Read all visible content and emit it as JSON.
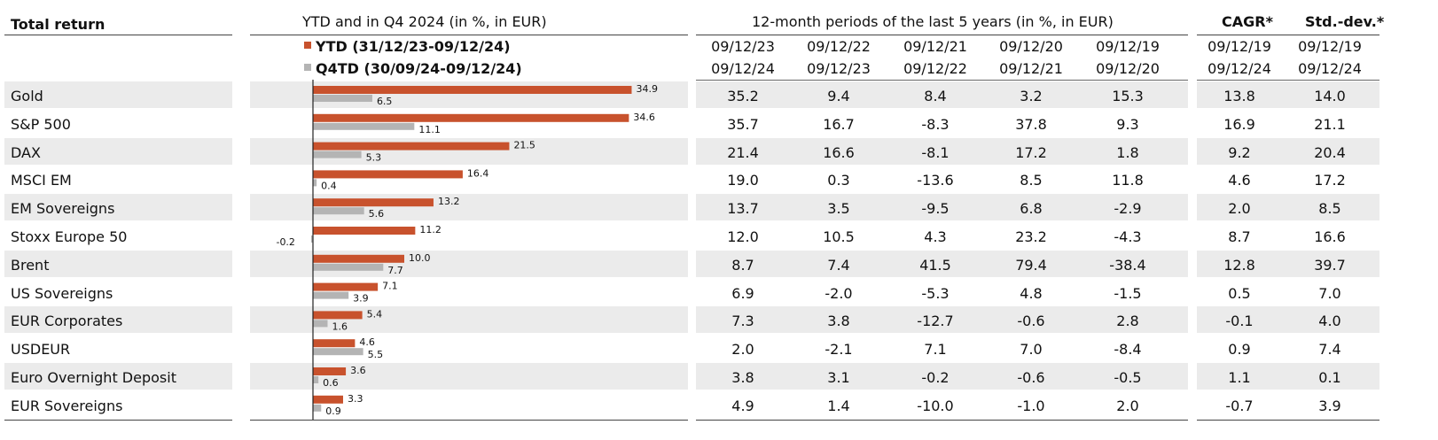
{
  "header": {
    "total_return": "Total return",
    "chart_title": "YTD and in Q4 2024 (in %, in EUR)",
    "periods_title": "12-month periods of the last 5 years (in %, in EUR)",
    "cagr_title": "CAGR*",
    "stddev_title": "Std.-dev.*"
  },
  "legend": {
    "ytd": "YTD (31/12/23-09/12/24)",
    "q4td": "Q4TD (30/09/24-09/12/24)"
  },
  "colors": {
    "ytd": "#c8522d",
    "q4td": "#b4b4b4",
    "band": "#ebebeb"
  },
  "periods": [
    {
      "from": "09/12/23",
      "to": "09/12/24"
    },
    {
      "from": "09/12/22",
      "to": "09/12/23"
    },
    {
      "from": "09/12/21",
      "to": "09/12/22"
    },
    {
      "from": "09/12/20",
      "to": "09/12/21"
    },
    {
      "from": "09/12/19",
      "to": "09/12/20"
    }
  ],
  "cagr_period": {
    "from": "09/12/19",
    "to": "09/12/24"
  },
  "stddev_period": {
    "from": "09/12/19",
    "to": "09/12/24"
  },
  "rows": [
    {
      "name": "Gold",
      "periods": [
        "35.2",
        "9.4",
        "8.4",
        "3.2",
        "15.3"
      ],
      "cagr": "13.8",
      "std": "14.0"
    },
    {
      "name": "S&P 500",
      "periods": [
        "35.7",
        "16.7",
        "-8.3",
        "37.8",
        "9.3"
      ],
      "cagr": "16.9",
      "std": "21.1"
    },
    {
      "name": "DAX",
      "periods": [
        "21.4",
        "16.6",
        "-8.1",
        "17.2",
        "1.8"
      ],
      "cagr": "9.2",
      "std": "20.4"
    },
    {
      "name": "MSCI EM",
      "periods": [
        "19.0",
        "0.3",
        "-13.6",
        "8.5",
        "11.8"
      ],
      "cagr": "4.6",
      "std": "17.2"
    },
    {
      "name": "EM Sovereigns",
      "periods": [
        "13.7",
        "3.5",
        "-9.5",
        "6.8",
        "-2.9"
      ],
      "cagr": "2.0",
      "std": "8.5"
    },
    {
      "name": "Stoxx Europe 50",
      "periods": [
        "12.0",
        "10.5",
        "4.3",
        "23.2",
        "-4.3"
      ],
      "cagr": "8.7",
      "std": "16.6"
    },
    {
      "name": "Brent",
      "periods": [
        "8.7",
        "7.4",
        "41.5",
        "79.4",
        "-38.4"
      ],
      "cagr": "12.8",
      "std": "39.7"
    },
    {
      "name": "US Sovereigns",
      "periods": [
        "6.9",
        "-2.0",
        "-5.3",
        "4.8",
        "-1.5"
      ],
      "cagr": "0.5",
      "std": "7.0"
    },
    {
      "name": "EUR Corporates",
      "periods": [
        "7.3",
        "3.8",
        "-12.7",
        "-0.6",
        "2.8"
      ],
      "cagr": "-0.1",
      "std": "4.0"
    },
    {
      "name": "USDEUR",
      "periods": [
        "2.0",
        "-2.1",
        "7.1",
        "7.0",
        "-8.4"
      ],
      "cagr": "0.9",
      "std": "7.4"
    },
    {
      "name": "Euro Overnight Deposit",
      "periods": [
        "3.8",
        "3.1",
        "-0.2",
        "-0.6",
        "-0.5"
      ],
      "cagr": "1.1",
      "std": "0.1"
    },
    {
      "name": "EUR Sovereigns",
      "periods": [
        "4.9",
        "1.4",
        "-10.0",
        "-1.0",
        "2.0"
      ],
      "cagr": "-0.7",
      "std": "3.9"
    }
  ],
  "chart_data": {
    "type": "bar",
    "orientation": "horizontal",
    "title": "YTD and in Q4 2024 (in %, in EUR)",
    "categories": [
      "Gold",
      "S&P 500",
      "DAX",
      "MSCI EM",
      "EM Sovereigns",
      "Stoxx Europe 50",
      "Brent",
      "US Sovereigns",
      "EUR Corporates",
      "USDEUR",
      "Euro Overnight Deposit",
      "EUR Sovereigns"
    ],
    "series": [
      {
        "name": "YTD (31/12/23-09/12/24)",
        "values": [
          34.9,
          34.6,
          21.5,
          16.4,
          13.2,
          11.2,
          10.0,
          7.1,
          5.4,
          4.6,
          3.6,
          3.3
        ]
      },
      {
        "name": "Q4TD (30/09/24-09/12/24)",
        "values": [
          6.5,
          11.1,
          5.3,
          0.4,
          5.6,
          -0.2,
          7.7,
          3.9,
          1.6,
          5.5,
          0.6,
          0.9
        ]
      }
    ],
    "labels_ytd": [
      "34.9",
      "34.6",
      "21.5",
      "16.4",
      "13.2",
      "11.2",
      "10.0",
      "7.1",
      "5.4",
      "4.6",
      "3.6",
      "3.3"
    ],
    "labels_q4td": [
      "6.5",
      "11.1",
      "5.3",
      "0.4",
      "5.6",
      "-0.2",
      "7.7",
      "3.9",
      "1.6",
      "5.5",
      "0.6",
      "0.9"
    ],
    "xlim": [
      -2,
      40
    ]
  }
}
